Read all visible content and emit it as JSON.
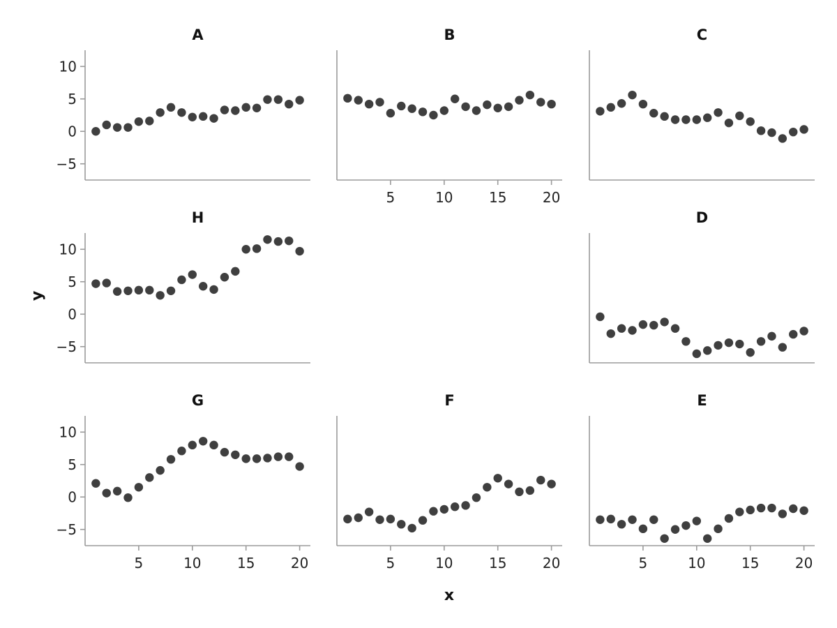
{
  "chart_data": {
    "type": "scatter",
    "layout": "facet-grid 3x3",
    "xlabel": "x",
    "ylabel": "y",
    "xlim": [
      0,
      21
    ],
    "ylim": [
      -7.5,
      12.5
    ],
    "xticks": [
      5,
      10,
      15,
      20
    ],
    "xtick_labels": [
      "5",
      "10",
      "15",
      "20"
    ],
    "yticks": [
      -5,
      0,
      5,
      10
    ],
    "ytick_labels": [
      "−5",
      "0",
      "5",
      "10"
    ],
    "grid": false,
    "point_color": "#3f3f3f",
    "axis_color": "#9a9a9a",
    "panels": [
      {
        "title": "A",
        "row": 0,
        "col": 0,
        "show_y": true,
        "show_x": false,
        "x": [
          1,
          2,
          3,
          4,
          5,
          6,
          7,
          8,
          9,
          10,
          11,
          12,
          13,
          14,
          15,
          16,
          17,
          18,
          19,
          20
        ],
        "y": [
          0.0,
          1.0,
          0.6,
          0.6,
          1.5,
          1.6,
          2.9,
          3.7,
          2.9,
          2.2,
          2.3,
          2.0,
          3.3,
          3.2,
          3.7,
          3.6,
          4.9,
          4.9,
          4.2,
          4.8
        ]
      },
      {
        "title": "B",
        "row": 0,
        "col": 1,
        "show_y": false,
        "show_x": true,
        "x": [
          1,
          2,
          3,
          4,
          5,
          6,
          7,
          8,
          9,
          10,
          11,
          12,
          13,
          14,
          15,
          16,
          17,
          18,
          19,
          20
        ],
        "y": [
          5.1,
          4.8,
          4.2,
          4.5,
          2.8,
          3.9,
          3.5,
          3.0,
          2.5,
          3.2,
          5.0,
          3.8,
          3.2,
          4.1,
          3.6,
          3.8,
          4.8,
          5.6,
          4.5,
          4.2
        ]
      },
      {
        "title": "C",
        "row": 0,
        "col": 2,
        "show_y": false,
        "show_x": false,
        "x": [
          1,
          2,
          3,
          4,
          5,
          6,
          7,
          8,
          9,
          10,
          11,
          12,
          13,
          14,
          15,
          16,
          17,
          18,
          19,
          20
        ],
        "y": [
          3.1,
          3.7,
          4.3,
          5.6,
          4.2,
          2.8,
          2.3,
          1.8,
          1.8,
          1.8,
          2.1,
          2.9,
          1.3,
          2.4,
          1.5,
          0.1,
          -0.2,
          -1.1,
          -0.1,
          0.3
        ]
      },
      {
        "title": "H",
        "row": 1,
        "col": 0,
        "show_y": true,
        "show_x": false,
        "x": [
          1,
          2,
          3,
          4,
          5,
          6,
          7,
          8,
          9,
          10,
          11,
          12,
          13,
          14,
          15,
          16,
          17,
          18,
          19,
          20
        ],
        "y": [
          4.7,
          4.8,
          3.5,
          3.6,
          3.7,
          3.7,
          2.9,
          3.6,
          5.3,
          6.1,
          4.3,
          3.8,
          5.7,
          6.6,
          10.0,
          10.1,
          11.5,
          11.2,
          11.3,
          9.7
        ]
      },
      {
        "title": "D",
        "row": 1,
        "col": 2,
        "show_y": false,
        "show_x": false,
        "x": [
          1,
          2,
          3,
          4,
          5,
          6,
          7,
          8,
          9,
          10,
          11,
          12,
          13,
          14,
          15,
          16,
          17,
          18,
          19,
          20
        ],
        "y": [
          -0.4,
          -3.0,
          -2.2,
          -2.5,
          -1.6,
          -1.7,
          -1.2,
          -2.2,
          -4.2,
          -6.1,
          -5.6,
          -4.8,
          -4.4,
          -4.6,
          -5.9,
          -4.2,
          -3.4,
          -5.1,
          -3.1,
          -2.6
        ]
      },
      {
        "title": "G",
        "row": 2,
        "col": 0,
        "show_y": true,
        "show_x": true,
        "x": [
          1,
          2,
          3,
          4,
          5,
          6,
          7,
          8,
          9,
          10,
          11,
          12,
          13,
          14,
          15,
          16,
          17,
          18,
          19,
          20
        ],
        "y": [
          2.1,
          0.6,
          0.9,
          -0.1,
          1.5,
          3.0,
          4.1,
          5.8,
          7.1,
          8.0,
          8.6,
          8.0,
          6.9,
          6.5,
          5.9,
          5.9,
          6.0,
          6.2,
          6.2,
          4.7
        ]
      },
      {
        "title": "F",
        "row": 2,
        "col": 1,
        "show_y": false,
        "show_x": true,
        "x": [
          1,
          2,
          3,
          4,
          5,
          6,
          7,
          8,
          9,
          10,
          11,
          12,
          13,
          14,
          15,
          16,
          17,
          18,
          19,
          20
        ],
        "y": [
          -3.4,
          -3.2,
          -2.3,
          -3.5,
          -3.4,
          -4.2,
          -4.8,
          -3.6,
          -2.2,
          -1.9,
          -1.5,
          -1.3,
          -0.1,
          1.5,
          2.9,
          2.0,
          0.8,
          1.0,
          2.6,
          2.0
        ]
      },
      {
        "title": "E",
        "row": 2,
        "col": 2,
        "show_y": false,
        "show_x": true,
        "x": [
          1,
          2,
          3,
          4,
          5,
          6,
          7,
          8,
          9,
          10,
          11,
          12,
          13,
          14,
          15,
          16,
          17,
          18,
          19,
          20
        ],
        "y": [
          -3.5,
          -3.4,
          -4.2,
          -3.5,
          -4.9,
          -3.5,
          -6.4,
          -5.0,
          -4.4,
          -3.7,
          -6.4,
          -4.9,
          -3.3,
          -2.3,
          -2.0,
          -1.7,
          -1.7,
          -2.6,
          -1.8,
          -2.1
        ]
      }
    ]
  }
}
